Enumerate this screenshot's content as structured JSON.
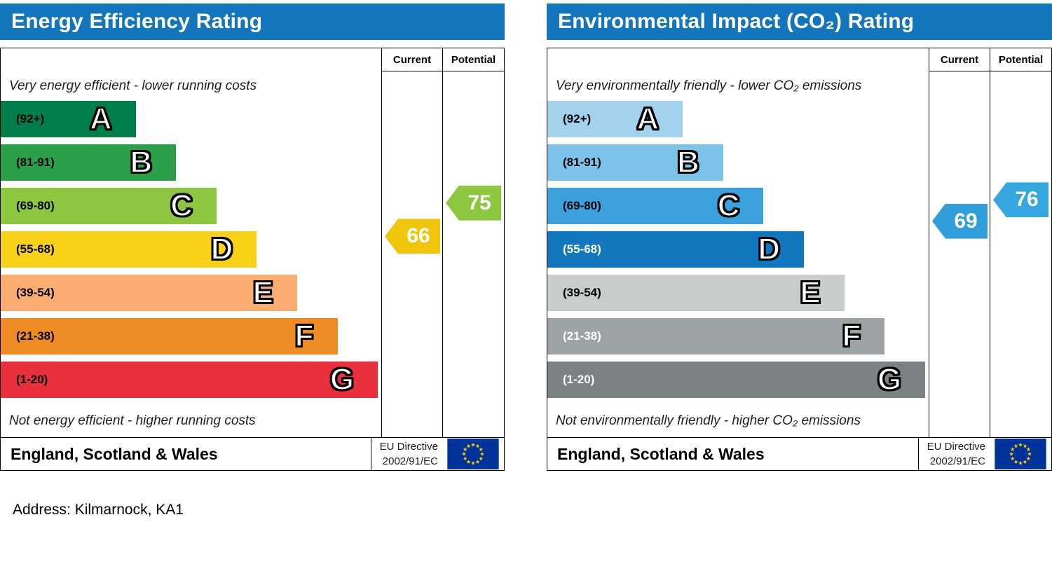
{
  "address": "Address: Kilmarnock, KA1",
  "chart_data": [
    {
      "type": "bar",
      "title": "Energy Efficiency Rating",
      "header_color": "#1375bb",
      "columns": {
        "current": "Current",
        "potential": "Potential"
      },
      "top_note": "Very energy efficient - lower running costs",
      "bottom_note": "Not energy efficient - higher running costs",
      "footer": {
        "region": "England, Scotland & Wales",
        "directive_line1": "EU Directive",
        "directive_line2": "2002/91/EC"
      },
      "bands": [
        {
          "letter": "A",
          "range": "(92+)",
          "lo": 92,
          "hi": 100,
          "color": "#007f4c",
          "label_color": "#000000",
          "width_pct": 35.5
        },
        {
          "letter": "B",
          "range": "(81-91)",
          "lo": 81,
          "hi": 91,
          "color": "#2ba049",
          "label_color": "#000000",
          "width_pct": 46.1
        },
        {
          "letter": "C",
          "range": "(69-80)",
          "lo": 69,
          "hi": 80,
          "color": "#8dc63f",
          "label_color": "#000000",
          "width_pct": 56.7
        },
        {
          "letter": "D",
          "range": "(55-68)",
          "lo": 55,
          "hi": 68,
          "color": "#f8d118",
          "label_color": "#000000",
          "width_pct": 67.3
        },
        {
          "letter": "E",
          "range": "(39-54)",
          "lo": 39,
          "hi": 54,
          "color": "#fbac71",
          "label_color": "#000000",
          "width_pct": 77.9
        },
        {
          "letter": "F",
          "range": "(21-38)",
          "lo": 21,
          "hi": 38,
          "color": "#ee8b23",
          "label_color": "#000000",
          "width_pct": 88.5
        },
        {
          "letter": "G",
          "range": "(1-20)",
          "lo": 1,
          "hi": 20,
          "color": "#e9303c",
          "label_color": "#000000",
          "width_pct": 99.1
        }
      ],
      "current": {
        "value": 66,
        "band": "D",
        "color": "#f0c50c"
      },
      "potential": {
        "value": 75,
        "band": "C",
        "color": "#8dc63f"
      }
    },
    {
      "type": "bar",
      "title": "Environmental Impact (CO₂) Rating",
      "header_color": "#1375bb",
      "columns": {
        "current": "Current",
        "potential": "Potential"
      },
      "top_note": "Very environmentally friendly - lower CO₂ emissions",
      "bottom_note": "Not environmentally friendly - higher CO₂ emissions",
      "footer": {
        "region": "England, Scotland & Wales",
        "directive_line1": "EU Directive",
        "directive_line2": "2002/91/EC"
      },
      "bands": [
        {
          "letter": "A",
          "range": "(92+)",
          "lo": 92,
          "hi": 100,
          "color": "#a2d2ee",
          "label_color": "#000000",
          "width_pct": 35.5
        },
        {
          "letter": "B",
          "range": "(81-91)",
          "lo": 81,
          "hi": 91,
          "color": "#7cc3ea",
          "label_color": "#000000",
          "width_pct": 46.1
        },
        {
          "letter": "C",
          "range": "(69-80)",
          "lo": 69,
          "hi": 80,
          "color": "#3aa1dc",
          "label_color": "#000000",
          "width_pct": 56.7
        },
        {
          "letter": "D",
          "range": "(55-68)",
          "lo": 55,
          "hi": 68,
          "color": "#1278be",
          "label_color": "#ffffff",
          "width_pct": 67.3
        },
        {
          "letter": "E",
          "range": "(39-54)",
          "lo": 39,
          "hi": 54,
          "color": "#c9cccd",
          "label_color": "#000000",
          "width_pct": 77.9
        },
        {
          "letter": "F",
          "range": "(21-38)",
          "lo": 21,
          "hi": 38,
          "color": "#9da2a5",
          "label_color": "#ffffff",
          "width_pct": 88.5
        },
        {
          "letter": "G",
          "range": "(1-20)",
          "lo": 1,
          "hi": 20,
          "color": "#7c8184",
          "label_color": "#ffffff",
          "width_pct": 99.1
        }
      ],
      "current": {
        "value": 69,
        "band": "C",
        "color": "#2f9edb"
      },
      "potential": {
        "value": 76,
        "band": "C",
        "color": "#35a7e0"
      }
    }
  ],
  "eu_flag_colors": {
    "field": "#003399",
    "stars": "#ffcc00"
  }
}
